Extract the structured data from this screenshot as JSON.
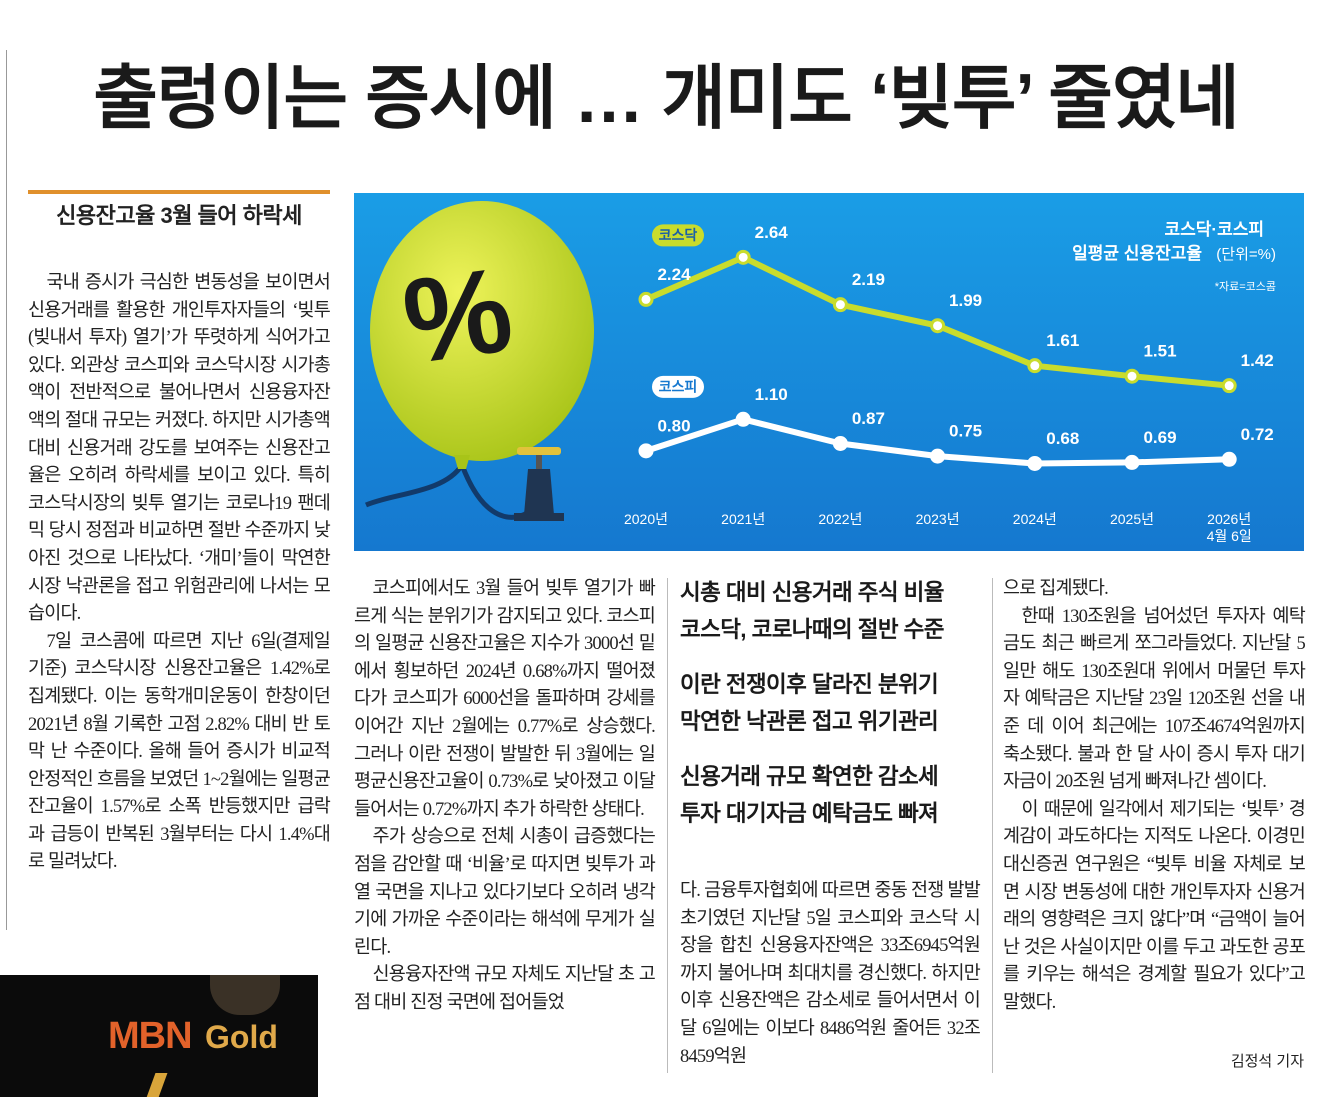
{
  "header": {
    "title": "출렁이는 증시에 … 개미도 ‘빚투’ 줄였네"
  },
  "sidebar": {
    "subhead": "신용잔고율 3월 들어 하락세"
  },
  "columns": {
    "left": [
      "국내 증시가 극심한 변동성을 보이면서 신용거래를 활용한 개인투자자들의 ‘빚투(빚내서 투자) 열기’가 뚜렷하게 식어가고 있다. 외관상 코스피와 코스닥시장 시가총액이 전반적으로 불어나면서 신용융자잔액의 절대 규모는 커졌다. 하지만 시가총액 대비 신용거래 강도를 보여주는 신용잔고율은 오히려 하락세를 보이고 있다. 특히 코스닥시장의 빚투 열기는 코로나19 팬데믹 당시 정점과 비교하면 절반 수준까지 낮아진 것으로 나타났다. ‘개미’들이 막연한 시장 낙관론을 접고 위험관리에 나서는 모습이다.",
      "7일 코스콤에 따르면 지난 6일(결제일 기준) 코스닥시장 신용잔고율은 1.42%로 집계됐다. 이는 동학개미운동이 한창이던 2021년 8월 기록한 고점 2.82% 대비 반 토막 난 수준이다. 올해 들어 증시가 비교적 안정적인 흐름을 보였던 1~2월에는 일평균 잔고율이 1.57%로 소폭 반등했지만 급락과 급등이 반복된 3월부터는 다시 1.4%대로 밀려났다."
    ],
    "middle": [
      "코스피에서도 3월 들어 빚투 열기가 빠르게 식는 분위기가 감지되고 있다. 코스피의 일평균 신용잔고율은 지수가 3000선 밑에서 횡보하던 2024년 0.68%까지 떨어졌다가 코스피가 6000선을 돌파하며 강세를 이어간 지난 2월에는 0.77%로 상승했다. 그러나 이란 전쟁이 발발한 뒤 3월에는 일평균신용잔고율이 0.73%로 낮아졌고 이달 들어서는 0.72%까지 추가 하락한 상태다.",
      "주가 상승으로 전체 시총이 급증했다는 점을 감안할 때 ‘비율’로 따지면 빚투가 과열 국면을 지나고 있다기보다 오히려 냉각기에 가까운 수준이라는 해석에 무게가 실린다.",
      "신용융자잔액 규모 자체도 지난달 초 고점 대비 진정 국면에 접어들었"
    ],
    "third": [
      "다. 금융투자협회에 따르면 중동 전쟁 발발 초기였던 지난달 5일 코스피와 코스닥 시장을 합친 신용융자잔액은 33조6945억원까지 불어나며 최대치를 경신했다. 하지만 이후 신용잔액은 감소세로 들어서면서 이달 6일에는 이보다 8486억원 줄어든 32조8459억원"
    ],
    "right": [
      "으로 집계됐다.",
      "한때 130조원을 넘어섰던 투자자 예탁금도 최근 빠르게 쪼그라들었다. 지난달 5일만 해도 130조원대 위에서 머물던 투자자 예탁금은 지난달 23일 120조원 선을 내준 데 이어 최근에는 107조4674억원까지 축소됐다. 불과 한 달 사이 증시 투자 대기자금이 20조원 넘게 빠져나간 셈이다.",
      "이 때문에 일각에서 제기되는 ‘빚투’ 경계감이 과도하다는 지적도 나온다. 이경민 대신증권 연구원은 “빚투 비율 자체로 보면 시장 변동성에 대한 개인투자자 신용거래의 영향력은 크지 않다”며 “금액이 늘어난 것은 사실이지만 이를 두고 과도한 공포를 키우는 해석은 경계할 필요가 있다”고 말했다."
    ]
  },
  "headlines": [
    [
      "시총 대비 신용거래 주식 비율",
      "코스닥, 코로나때의 절반 수준"
    ],
    [
      "이란 전쟁이후 달라진 분위기",
      "막연한 낙관론 접고 위기관리"
    ],
    [
      "신용거래 규모 확연한 감소세",
      "투자 대기자금 예탁금도 빠져"
    ]
  ],
  "byline": "김정석 기자",
  "ad": {
    "brand": "MBN",
    "sub": "Gold"
  },
  "chart_data": {
    "type": "line",
    "title": [
      "코스닥·코스피",
      "일평균 신용잔고율"
    ],
    "unit": "(단위=%)",
    "source": "*자료=코스콤",
    "balloon_label": "%",
    "categories": [
      "2020년",
      "2021년",
      "2022년",
      "2023년",
      "2024년",
      "2025년",
      "2026년 4월 6일"
    ],
    "ylim": [
      0,
      2.9
    ],
    "series": [
      {
        "name": "코스닥",
        "color": "#c9dc2c",
        "values": [
          2.24,
          2.64,
          2.19,
          1.99,
          1.61,
          1.51,
          1.42
        ],
        "value_labels": [
          "2.24",
          "2.64",
          "2.19",
          "1.99",
          "1.61",
          "1.51",
          "1.42"
        ]
      },
      {
        "name": "코스피",
        "color": "#ffffff",
        "values": [
          0.8,
          1.1,
          0.87,
          0.75,
          0.68,
          0.69,
          0.72
        ],
        "value_labels": [
          "0.80",
          "1.10",
          "0.87",
          "0.75",
          "0.68",
          "0.69",
          "0.72"
        ]
      }
    ]
  }
}
